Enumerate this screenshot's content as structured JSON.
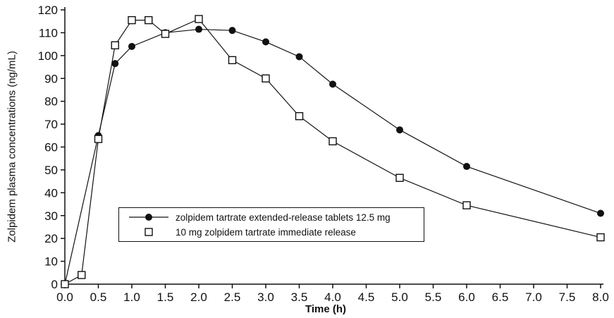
{
  "chart_data": {
    "type": "line",
    "title": "",
    "xlabel": "Time (h)",
    "ylabel": "Zolpidem plasma concentrations (ng/mL)",
    "xlim": [
      0,
      8
    ],
    "ylim": [
      0,
      120
    ],
    "xticks": [
      0.0,
      0.5,
      1.0,
      1.5,
      2.0,
      2.5,
      3.0,
      3.5,
      4.0,
      4.5,
      5.0,
      5.5,
      6.0,
      6.5,
      7.0,
      7.5,
      8.0
    ],
    "yticks": [
      0,
      10,
      20,
      30,
      40,
      50,
      60,
      70,
      80,
      90,
      100,
      110,
      120
    ],
    "grid": false,
    "legend_position": "inside-lower-left",
    "line_color": "#111111",
    "series": [
      {
        "name": "zolpidem tartrate extended-release tablets 12.5 mg",
        "marker": "filled-circle",
        "x": [
          0,
          0.5,
          0.75,
          1.0,
          1.5,
          2.0,
          2.5,
          3.0,
          3.5,
          4.0,
          5.0,
          6.0,
          8.0
        ],
        "y": [
          0,
          65,
          96.5,
          104,
          110,
          111.5,
          111,
          106,
          99.5,
          87.5,
          67.5,
          51.5,
          31
        ]
      },
      {
        "name": "10 mg zolpidem tartrate immediate release",
        "marker": "open-square",
        "x": [
          0,
          0.25,
          0.5,
          0.75,
          1.0,
          1.25,
          1.5,
          2.0,
          2.5,
          3.0,
          3.5,
          4.0,
          5.0,
          6.0,
          8.0
        ],
        "y": [
          0,
          4,
          63.5,
          104.5,
          115.5,
          115.5,
          109.5,
          116,
          98,
          90,
          73.5,
          62.5,
          46.5,
          34.5,
          20.5
        ]
      }
    ]
  }
}
